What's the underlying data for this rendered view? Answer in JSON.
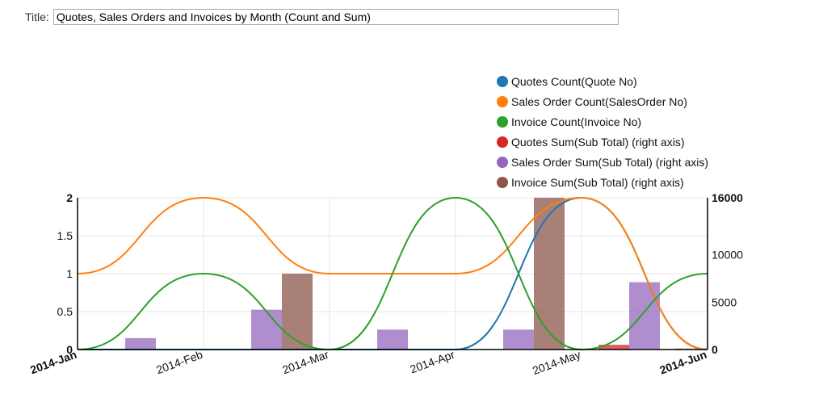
{
  "title_field": {
    "label": "Title:",
    "value": "Quotes, Sales Orders and Invoices by Month (Count and Sum)"
  },
  "chart_data": {
    "type": "line+bar",
    "categories": [
      "2014-Jan",
      "2014-Feb",
      "2014-Mar",
      "2014-Apr",
      "2014-May",
      "2014-Jun"
    ],
    "y_left": {
      "range": [
        0,
        2
      ],
      "ticks": [
        "0",
        "0.5",
        "1",
        "1.5",
        "2"
      ]
    },
    "y_right": {
      "range": [
        0,
        16000
      ],
      "ticks": [
        "0",
        "5000",
        "10000",
        "16000"
      ]
    },
    "grid": true,
    "legend_position": "top-right",
    "line_series": [
      {
        "name": "Quotes Count(Quote No)",
        "color": "#1f77b4",
        "values": [
          0,
          0,
          0,
          0,
          2,
          0
        ]
      },
      {
        "name": "Sales Order Count(SalesOrder No)",
        "color": "#ff7f0e",
        "values": [
          1,
          2,
          1,
          1,
          2,
          0
        ]
      },
      {
        "name": "Invoice Count(Invoice No)",
        "color": "#2ca02c",
        "values": [
          0,
          1,
          0,
          2,
          0,
          1
        ]
      }
    ],
    "bar_series": [
      {
        "name": "Quotes Sum(Sub Total) (right axis)",
        "color": "#d62728",
        "values": [
          0,
          0,
          0,
          0,
          500,
          100
        ]
      },
      {
        "name": "Sales Order Sum(Sub Total) (right axis)",
        "color": "#9467bd",
        "values": [
          1200,
          4200,
          2100,
          2100,
          7100,
          100
        ]
      },
      {
        "name": "Invoice Sum(Sub Total) (right axis)",
        "color": "#8c564b",
        "values": [
          0,
          8000,
          0,
          16000,
          0,
          100
        ]
      }
    ]
  }
}
